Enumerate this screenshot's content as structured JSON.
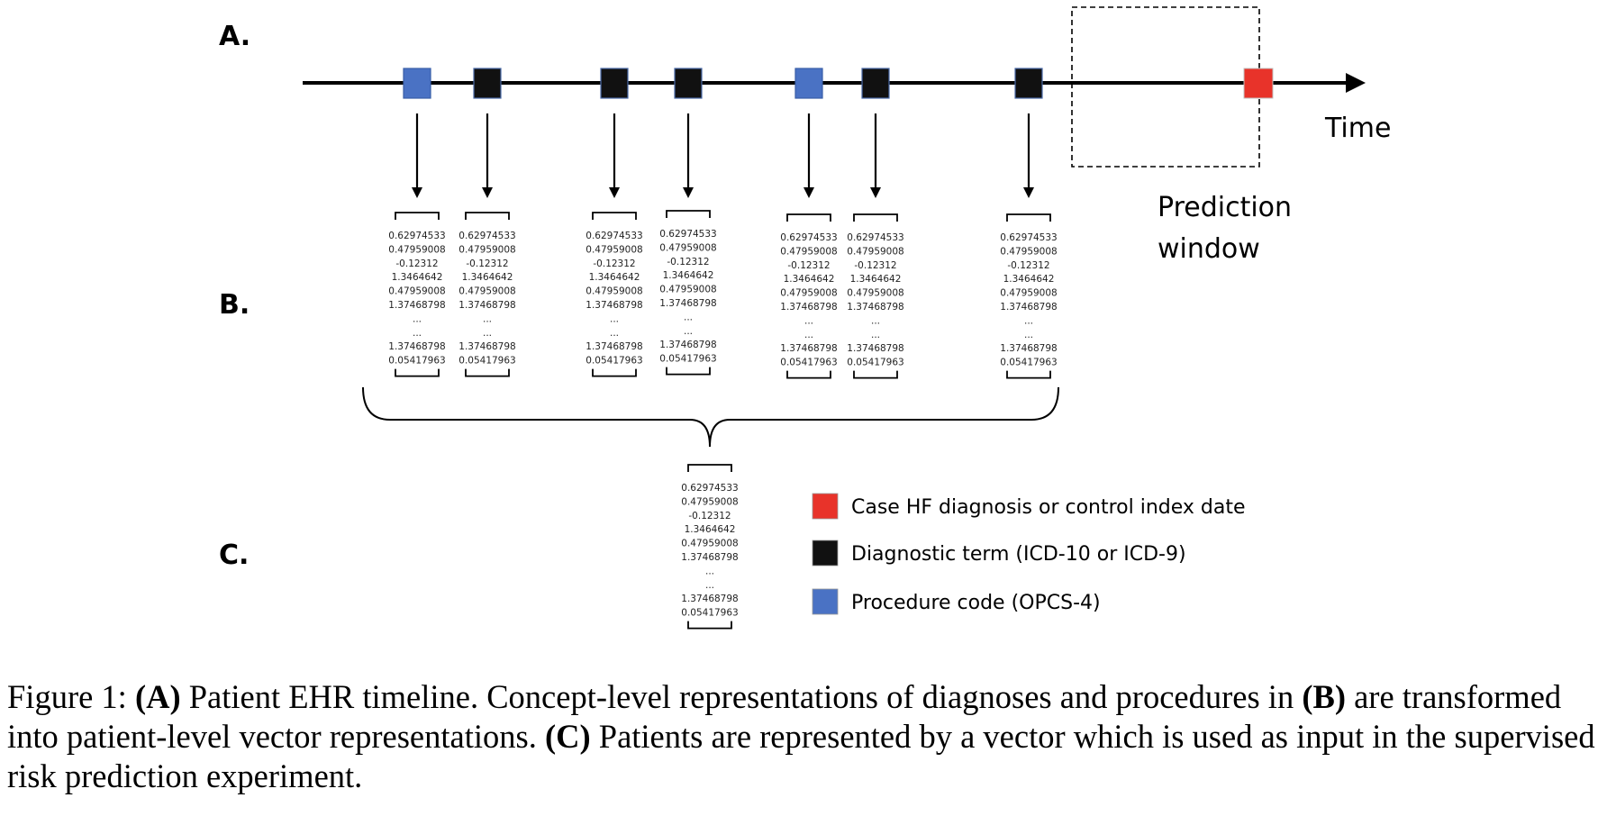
{
  "panels": {
    "a": "A.",
    "b": "B.",
    "c": "C."
  },
  "timeline": {
    "axis_label": "Time",
    "prediction_window_line1": "Prediction",
    "prediction_window_line2": "window",
    "events": [
      {
        "type": "procedure"
      },
      {
        "type": "diagnostic"
      },
      {
        "type": "diagnostic"
      },
      {
        "type": "diagnostic"
      },
      {
        "type": "procedure"
      },
      {
        "type": "diagnostic"
      },
      {
        "type": "diagnostic"
      }
    ],
    "outcome": {
      "type": "case"
    }
  },
  "vector_values": [
    "0.62974533",
    "0.47959008",
    "-0.12312",
    "1.3464642",
    "0.47959008",
    "1.37468798",
    "...",
    "...",
    "1.37468798",
    "0.05417963"
  ],
  "legend": [
    {
      "label": "Case HF diagnosis or control index date",
      "color": "#e8332a"
    },
    {
      "label": "Diagnostic term (ICD-10 or ICD-9)",
      "color": "#111111"
    },
    {
      "label": "Procedure code (OPCS-4)",
      "color": "#4a72c4"
    }
  ],
  "colors": {
    "procedure": "#4a72c4",
    "diagnostic": "#111111",
    "case": "#e8332a"
  },
  "caption": {
    "prefix": "Figure 1: ",
    "a_bold": "(A)",
    "part1": " Patient EHR timeline. Concept-level representations of diagnoses and procedures in ",
    "b_bold": "(B)",
    "part2": " are transformed into patient-level vector representations. ",
    "c_bold": "(C)",
    "part3": " Patients are represented by a vector which is used as input in the supervised risk prediction experiment."
  }
}
